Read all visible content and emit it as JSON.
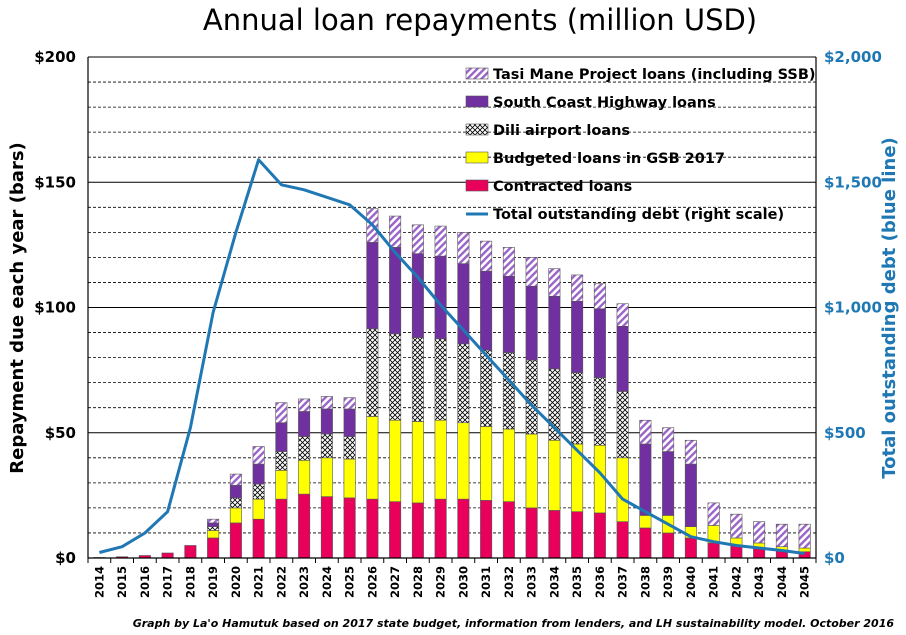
{
  "chart_data": {
    "type": "bar",
    "stacked": true,
    "title": "Annual loan repayments (million USD)",
    "ylabel": "Repayment due each year (bars)",
    "ylabel_right": "Total outstanding debt (blue line)",
    "caption": "Graph by La'o Hamutuk based on 2017 state budget, information from lenders, and LH sustainability model. October 2016",
    "ylim": [
      0,
      200
    ],
    "ylim_right": [
      0,
      2000
    ],
    "yticks": [
      0,
      50,
      100,
      150,
      200
    ],
    "ytick_labels": [
      "$0",
      "$50",
      "$100",
      "$150",
      "$200"
    ],
    "yticks_right": [
      0,
      500,
      1000,
      1500,
      2000
    ],
    "ytick_labels_right": [
      "$0",
      "$500",
      "$1,000",
      "$1,500",
      "$2,000"
    ],
    "categories": [
      "2014",
      "2015",
      "2016",
      "2017",
      "2018",
      "2019",
      "2020",
      "2021",
      "2022",
      "2023",
      "2024",
      "2025",
      "2026",
      "2027",
      "2028",
      "2029",
      "2030",
      "2031",
      "2032",
      "2033",
      "2034",
      "2035",
      "2036",
      "2037",
      "2038",
      "2039",
      "2040",
      "2041",
      "2042",
      "2043",
      "2044",
      "2045"
    ],
    "series": [
      {
        "name": "Contracted loans",
        "color": "#e8005a",
        "values": [
          0.2,
          0.5,
          1,
          2,
          5,
          8,
          14,
          15.5,
          23.5,
          25.5,
          24.5,
          24,
          23.5,
          22.5,
          22,
          23.5,
          23.5,
          23,
          22.5,
          20,
          19,
          18.5,
          18,
          14.5,
          12,
          10,
          8,
          6,
          5,
          4,
          3,
          2.5
        ]
      },
      {
        "name": "Budgeted loans in GSB 2017",
        "color": "#ffff00",
        "values": [
          0,
          0,
          0,
          0,
          0,
          3,
          6,
          8,
          11.5,
          13.5,
          15.5,
          15.5,
          33,
          32.5,
          32.5,
          31.5,
          30.5,
          29.5,
          29,
          29.5,
          28,
          27,
          27,
          25.5,
          5,
          7,
          4.5,
          7,
          3,
          2,
          1.5,
          1.5
        ]
      },
      {
        "name": "Dili airport loans",
        "color": "#ffffff",
        "pattern": "crosshatch",
        "values": [
          0,
          0,
          0,
          0,
          0,
          1.5,
          4,
          6,
          7.5,
          9.5,
          9.5,
          9,
          35,
          34.5,
          33.5,
          32.5,
          31.5,
          30.5,
          30.5,
          29.5,
          28.5,
          28.5,
          27,
          26.5,
          0,
          0,
          0,
          0,
          0,
          0,
          0,
          0
        ]
      },
      {
        "name": "South Coast Highway loans",
        "color": "#7030a0",
        "values": [
          0,
          0,
          0,
          0,
          0,
          1.5,
          5,
          8,
          11.5,
          10,
          10,
          11,
          34.5,
          34.5,
          33.5,
          33,
          32,
          31.5,
          30.5,
          29.5,
          29,
          28.5,
          27.5,
          26,
          28.5,
          25.5,
          25,
          0,
          0,
          0,
          0,
          0
        ]
      },
      {
        "name": "Tasi Mane Project loans (including SSB)",
        "color": "#c9a0dc",
        "pattern": "diagonal",
        "values": [
          0,
          0,
          0,
          0,
          0,
          1.5,
          4.5,
          7,
          8,
          5,
          5,
          4.5,
          13.5,
          12.5,
          11.5,
          12,
          12.5,
          12,
          11.5,
          11.5,
          11,
          10.5,
          10,
          9,
          9.5,
          9.5,
          9.5,
          9,
          9.5,
          8.5,
          9,
          9.5
        ]
      }
    ],
    "line": {
      "name": "Total outstanding debt (right scale)",
      "color": "#1f78b4",
      "axis": "right",
      "values": [
        22,
        45,
        100,
        185,
        520,
        980,
        1300,
        1590,
        1490,
        1470,
        1440,
        1410,
        1330,
        1220,
        1120,
        1010,
        910,
        810,
        710,
        610,
        520,
        430,
        340,
        235,
        185,
        135,
        85,
        65,
        50,
        40,
        30,
        18
      ]
    },
    "legend_position": "top-right"
  }
}
